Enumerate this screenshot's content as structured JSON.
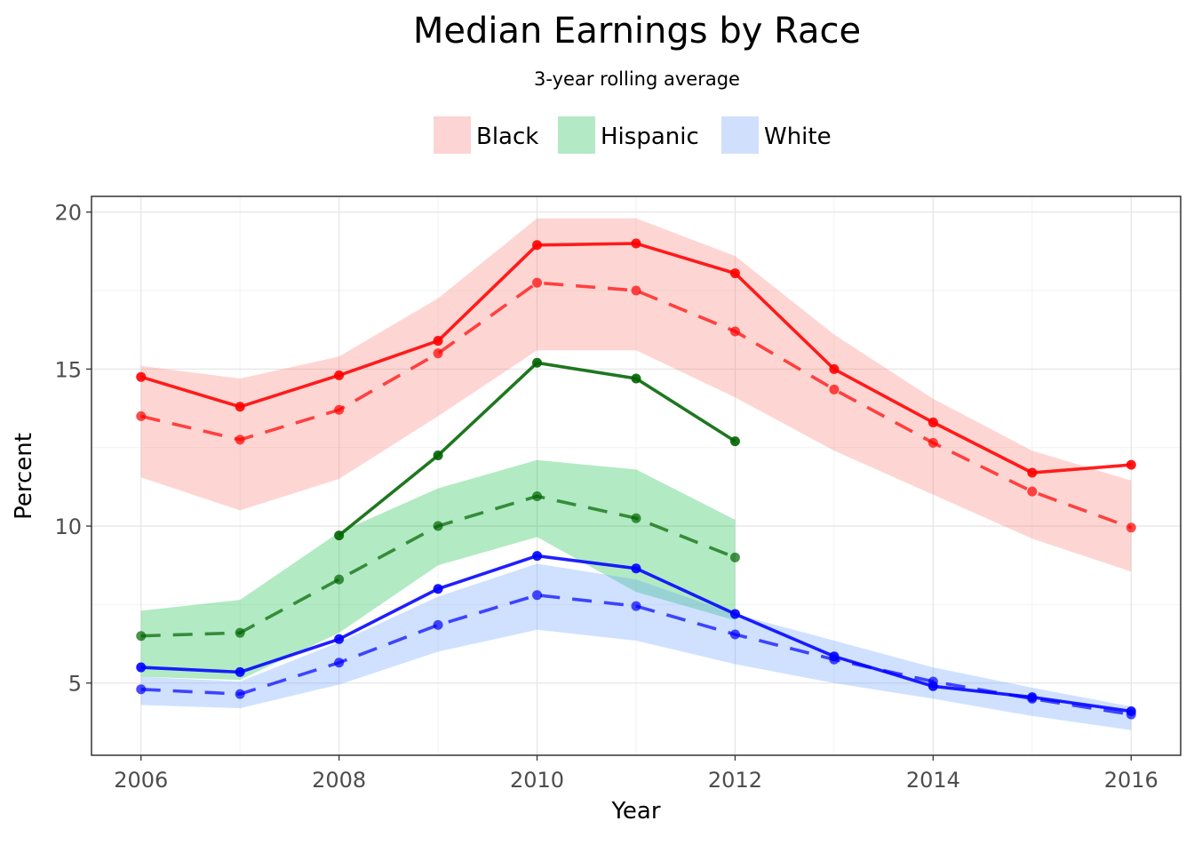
{
  "chart_data": {
    "type": "line",
    "title": "Median Earnings by Race",
    "subtitle": "3-year rolling average",
    "xlabel": "Year",
    "ylabel": "Percent",
    "xlim": [
      2005.5,
      2016.5
    ],
    "ylim": [
      2.7,
      20.5
    ],
    "x_ticks": [
      2006,
      2008,
      2010,
      2012,
      2014,
      2016
    ],
    "y_ticks": [
      5,
      10,
      15,
      20
    ],
    "grid": true,
    "legend_position": "top",
    "legend": [
      {
        "name": "Black",
        "color": "#fcd4d3"
      },
      {
        "name": "Hispanic",
        "color": "#b3e9c5"
      },
      {
        "name": "White",
        "color": "#d0e0fc"
      }
    ],
    "series": [
      {
        "name": "Black",
        "color": "#ff0000",
        "fill": "#f8766d",
        "x": [
          2006,
          2007,
          2008,
          2009,
          2010,
          2011,
          2012,
          2013,
          2014,
          2015,
          2016
        ],
        "solid": [
          14.75,
          13.8,
          14.8,
          15.9,
          18.95,
          19.0,
          18.05,
          15.0,
          13.3,
          11.7,
          11.95
        ],
        "dashed": [
          13.5,
          12.75,
          13.7,
          15.5,
          17.75,
          17.5,
          16.2,
          14.35,
          12.65,
          11.1,
          9.95
        ],
        "band_lower": [
          11.55,
          10.5,
          11.5,
          13.5,
          15.6,
          15.6,
          14.1,
          12.4,
          11.0,
          9.6,
          8.55
        ],
        "band_upper": [
          15.1,
          14.7,
          15.4,
          17.25,
          19.8,
          19.8,
          18.6,
          16.1,
          14.05,
          12.4,
          11.45
        ]
      },
      {
        "name": "Hispanic",
        "color": "#006400",
        "fill": "#00ba38",
        "x": [
          2006,
          2007,
          2008,
          2009,
          2010,
          2011,
          2012
        ],
        "solid_x": [
          2008,
          2009,
          2010,
          2011,
          2012
        ],
        "solid": [
          9.7,
          12.25,
          15.2,
          14.7,
          12.7
        ],
        "dashed": [
          6.5,
          6.6,
          8.3,
          10.0,
          10.95,
          10.25,
          9.0
        ],
        "band_lower": [
          5.2,
          5.1,
          6.6,
          8.75,
          9.65,
          7.9,
          7.0
        ],
        "band_upper": [
          7.3,
          7.65,
          9.8,
          11.2,
          12.1,
          11.8,
          10.2
        ]
      },
      {
        "name": "White",
        "color": "#0000ff",
        "fill": "#619cff",
        "x": [
          2006,
          2007,
          2008,
          2009,
          2010,
          2011,
          2012,
          2013,
          2014,
          2015,
          2016
        ],
        "solid": [
          5.5,
          5.35,
          6.4,
          8.0,
          9.05,
          8.65,
          7.2,
          5.85,
          4.9,
          4.55,
          4.1
        ],
        "dashed": [
          4.8,
          4.65,
          5.65,
          6.85,
          7.8,
          7.45,
          6.55,
          5.75,
          5.05,
          4.5,
          4.0
        ],
        "band_lower": [
          4.3,
          4.2,
          4.95,
          6.0,
          6.7,
          6.35,
          5.6,
          5.0,
          4.5,
          3.95,
          3.5
        ],
        "band_upper": [
          5.2,
          5.05,
          6.3,
          7.75,
          8.8,
          8.3,
          7.2,
          6.35,
          5.5,
          4.85,
          4.25
        ]
      }
    ]
  }
}
